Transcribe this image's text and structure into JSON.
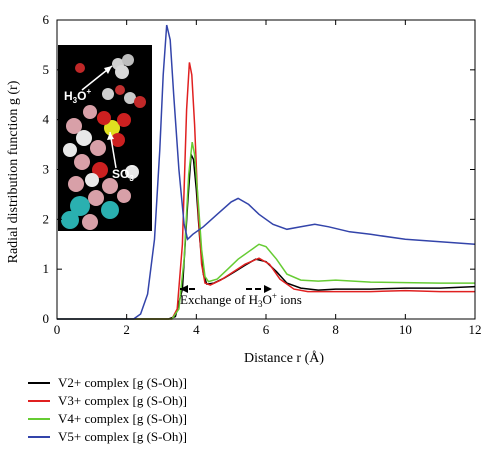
{
  "chart_data": {
    "type": "line",
    "xlabel": "Distance r (Å)",
    "ylabel": "Radial distribution function g (r)",
    "xlim": [
      0,
      12
    ],
    "ylim": [
      0,
      6
    ],
    "xticks": [
      0,
      2,
      4,
      6,
      8,
      10,
      12
    ],
    "yticks": [
      0,
      1,
      2,
      3,
      4,
      5,
      6
    ],
    "grid": false,
    "legend_position": "below",
    "annotation": {
      "text_prefix": "Exchange of H",
      "text_sub": "3",
      "text_mid": "O",
      "text_sup": "+",
      "text_suffix": " ions"
    },
    "inset_labels": {
      "h3o": "H",
      "h3o_sub": "3",
      "h3o_o": "O",
      "h3o_sup": "+",
      "so3": "SO",
      "so3_sub": "3",
      "so3_sup": "−"
    },
    "series": [
      {
        "name": "V2+ complex [g (S-Oh)]",
        "color": "#000000",
        "points": [
          [
            0,
            0
          ],
          [
            3.2,
            0
          ],
          [
            3.4,
            0.05
          ],
          [
            3.6,
            0.6
          ],
          [
            3.75,
            2.3
          ],
          [
            3.85,
            3.3
          ],
          [
            3.92,
            3.2
          ],
          [
            4.0,
            2.6
          ],
          [
            4.1,
            1.6
          ],
          [
            4.2,
            0.9
          ],
          [
            4.3,
            0.7
          ],
          [
            4.5,
            0.72
          ],
          [
            4.8,
            0.82
          ],
          [
            5.1,
            0.95
          ],
          [
            5.4,
            1.08
          ],
          [
            5.7,
            1.2
          ],
          [
            6.0,
            1.15
          ],
          [
            6.3,
            0.95
          ],
          [
            6.6,
            0.72
          ],
          [
            7.0,
            0.62
          ],
          [
            7.5,
            0.58
          ],
          [
            8.0,
            0.6
          ],
          [
            9.0,
            0.6
          ],
          [
            10,
            0.62
          ],
          [
            11,
            0.62
          ],
          [
            12,
            0.65
          ]
        ]
      },
      {
        "name": "V3+ complex [g (S-Oh)]",
        "color": "#e02020",
        "points": [
          [
            0,
            0
          ],
          [
            3.3,
            0
          ],
          [
            3.45,
            0.2
          ],
          [
            3.6,
            1.5
          ],
          [
            3.72,
            4.2
          ],
          [
            3.8,
            5.15
          ],
          [
            3.87,
            4.9
          ],
          [
            3.95,
            3.9
          ],
          [
            4.05,
            2.2
          ],
          [
            4.15,
            1.1
          ],
          [
            4.25,
            0.72
          ],
          [
            4.4,
            0.68
          ],
          [
            4.7,
            0.78
          ],
          [
            5.0,
            0.92
          ],
          [
            5.4,
            1.1
          ],
          [
            5.8,
            1.22
          ],
          [
            6.1,
            1.1
          ],
          [
            6.4,
            0.8
          ],
          [
            6.8,
            0.6
          ],
          [
            7.2,
            0.55
          ],
          [
            8.0,
            0.55
          ],
          [
            9.0,
            0.55
          ],
          [
            10,
            0.57
          ],
          [
            11,
            0.55
          ],
          [
            12,
            0.55
          ]
        ]
      },
      {
        "name": "V4+ complex [g (S-Oh)]",
        "color": "#66cc33",
        "points": [
          [
            0,
            0
          ],
          [
            3.3,
            0
          ],
          [
            3.5,
            0.2
          ],
          [
            3.65,
            1.2
          ],
          [
            3.78,
            2.9
          ],
          [
            3.88,
            3.55
          ],
          [
            3.95,
            3.3
          ],
          [
            4.05,
            2.4
          ],
          [
            4.15,
            1.4
          ],
          [
            4.25,
            0.85
          ],
          [
            4.35,
            0.75
          ],
          [
            4.6,
            0.8
          ],
          [
            4.9,
            1.0
          ],
          [
            5.2,
            1.2
          ],
          [
            5.5,
            1.35
          ],
          [
            5.8,
            1.5
          ],
          [
            6.0,
            1.45
          ],
          [
            6.3,
            1.2
          ],
          [
            6.6,
            0.9
          ],
          [
            7.0,
            0.78
          ],
          [
            7.5,
            0.76
          ],
          [
            8.0,
            0.78
          ],
          [
            9.0,
            0.74
          ],
          [
            10,
            0.73
          ],
          [
            11,
            0.72
          ],
          [
            12,
            0.72
          ]
        ]
      },
      {
        "name": "V5+ complex [g (S-Oh)]",
        "color": "#3344aa",
        "points": [
          [
            0,
            0
          ],
          [
            2.2,
            0
          ],
          [
            2.4,
            0.1
          ],
          [
            2.6,
            0.5
          ],
          [
            2.8,
            1.6
          ],
          [
            2.95,
            3.4
          ],
          [
            3.05,
            4.9
          ],
          [
            3.15,
            5.9
          ],
          [
            3.25,
            5.6
          ],
          [
            3.35,
            4.5
          ],
          [
            3.5,
            3.0
          ],
          [
            3.65,
            1.9
          ],
          [
            3.75,
            1.6
          ],
          [
            3.9,
            1.7
          ],
          [
            4.2,
            1.85
          ],
          [
            4.6,
            2.1
          ],
          [
            5.0,
            2.35
          ],
          [
            5.2,
            2.42
          ],
          [
            5.5,
            2.3
          ],
          [
            5.8,
            2.1
          ],
          [
            6.2,
            1.9
          ],
          [
            6.6,
            1.8
          ],
          [
            7.0,
            1.85
          ],
          [
            7.4,
            1.9
          ],
          [
            7.8,
            1.85
          ],
          [
            8.4,
            1.75
          ],
          [
            9.0,
            1.7
          ],
          [
            10,
            1.6
          ],
          [
            11,
            1.55
          ],
          [
            12,
            1.5
          ]
        ]
      }
    ]
  }
}
